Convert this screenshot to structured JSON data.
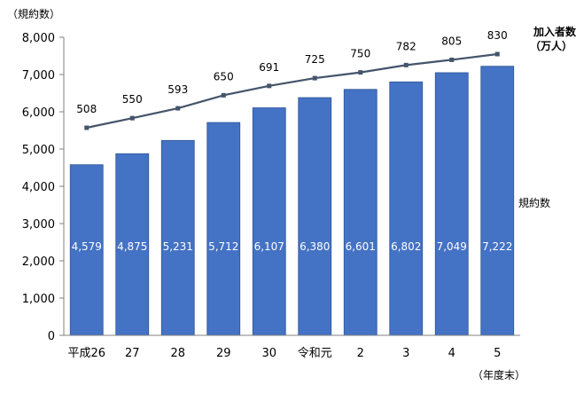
{
  "chart_data": {
    "type": "bar",
    "y_axis_title": "（規約数）",
    "ylim": [
      0,
      8000
    ],
    "yticks": [
      "0",
      "1,000",
      "2,000",
      "3,000",
      "4,000",
      "5,000",
      "6,000",
      "7,000",
      "8,000"
    ],
    "categories": [
      "平成26",
      "27",
      "28",
      "29",
      "30",
      "令和元",
      "2",
      "3",
      "4",
      "5"
    ],
    "x_axis_suffix": "（年度末）",
    "bar_series": {
      "name": "規約数",
      "color": "#4472C4",
      "values": [
        4579,
        4875,
        5231,
        5712,
        6107,
        6380,
        6601,
        6802,
        7049,
        7222
      ],
      "labels": [
        "4,579",
        "4,875",
        "5,231",
        "5,712",
        "6,107",
        "6,380",
        "6,601",
        "6,802",
        "7,049",
        "7,222"
      ]
    },
    "line_series": {
      "name_line1": "加入者数",
      "name_line2": "（万人）",
      "color": "#44546A",
      "values": [
        508,
        550,
        593,
        650,
        691,
        725,
        750,
        782,
        805,
        830
      ],
      "labels": [
        "508",
        "550",
        "593",
        "650",
        "691",
        "725",
        "750",
        "782",
        "805",
        "830"
      ]
    },
    "grid": false
  }
}
